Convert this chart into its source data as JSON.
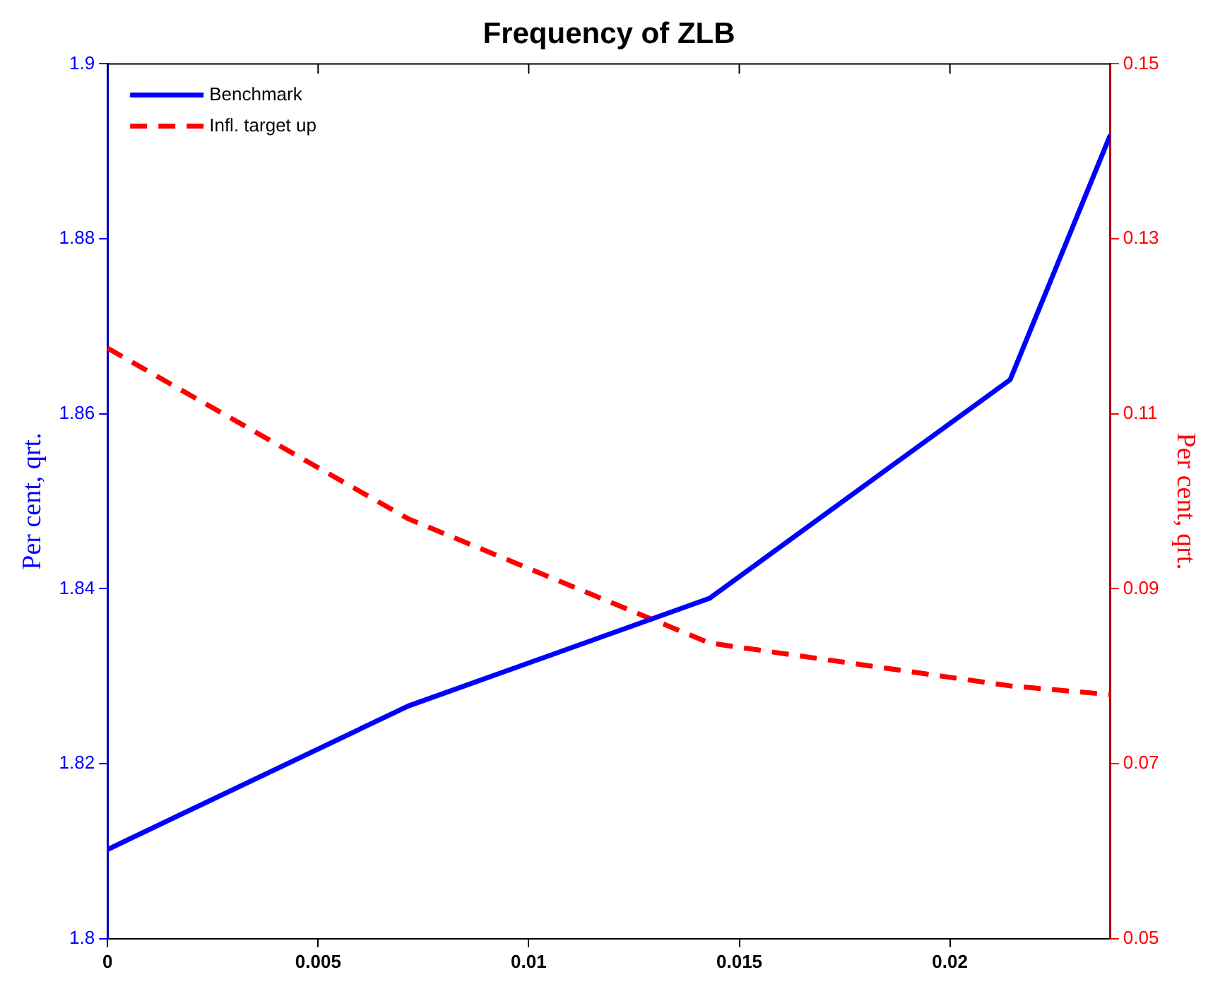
{
  "chart_data": {
    "type": "line",
    "title": "Frequency of ZLB",
    "ylabel": "Per cent, qrt.",
    "y2label": "Per cent, qrt.",
    "x": [
      0,
      0.00714,
      0.01429,
      0.02143,
      0.02381
    ],
    "series": [
      {
        "name": "Benchmark",
        "color": "#0000ff",
        "values": [
          1.8102,
          1.8266,
          1.8389,
          1.8639,
          1.8919
        ],
        "line_style": "solid"
      },
      {
        "name": "Infl. target up",
        "color": "#ff0000",
        "values": [
          0.1175,
          0.098,
          0.0838,
          0.0789,
          0.0779
        ],
        "axis": "y2",
        "line_style": "dashed"
      }
    ],
    "xlim": [
      0,
      0.02381
    ],
    "xticks": [
      0,
      0.005,
      0.01,
      0.015,
      0.02
    ],
    "ylim": [
      1.8,
      1.9
    ],
    "yticks": [
      1.8,
      1.82,
      1.84,
      1.86,
      1.88,
      1.9
    ],
    "y2lim": [
      0.05,
      0.15
    ],
    "y2ticks": [
      0.05,
      0.07,
      0.09,
      0.11,
      0.13,
      0.15
    ],
    "grid": false,
    "legend": "top left",
    "marker": "none"
  }
}
